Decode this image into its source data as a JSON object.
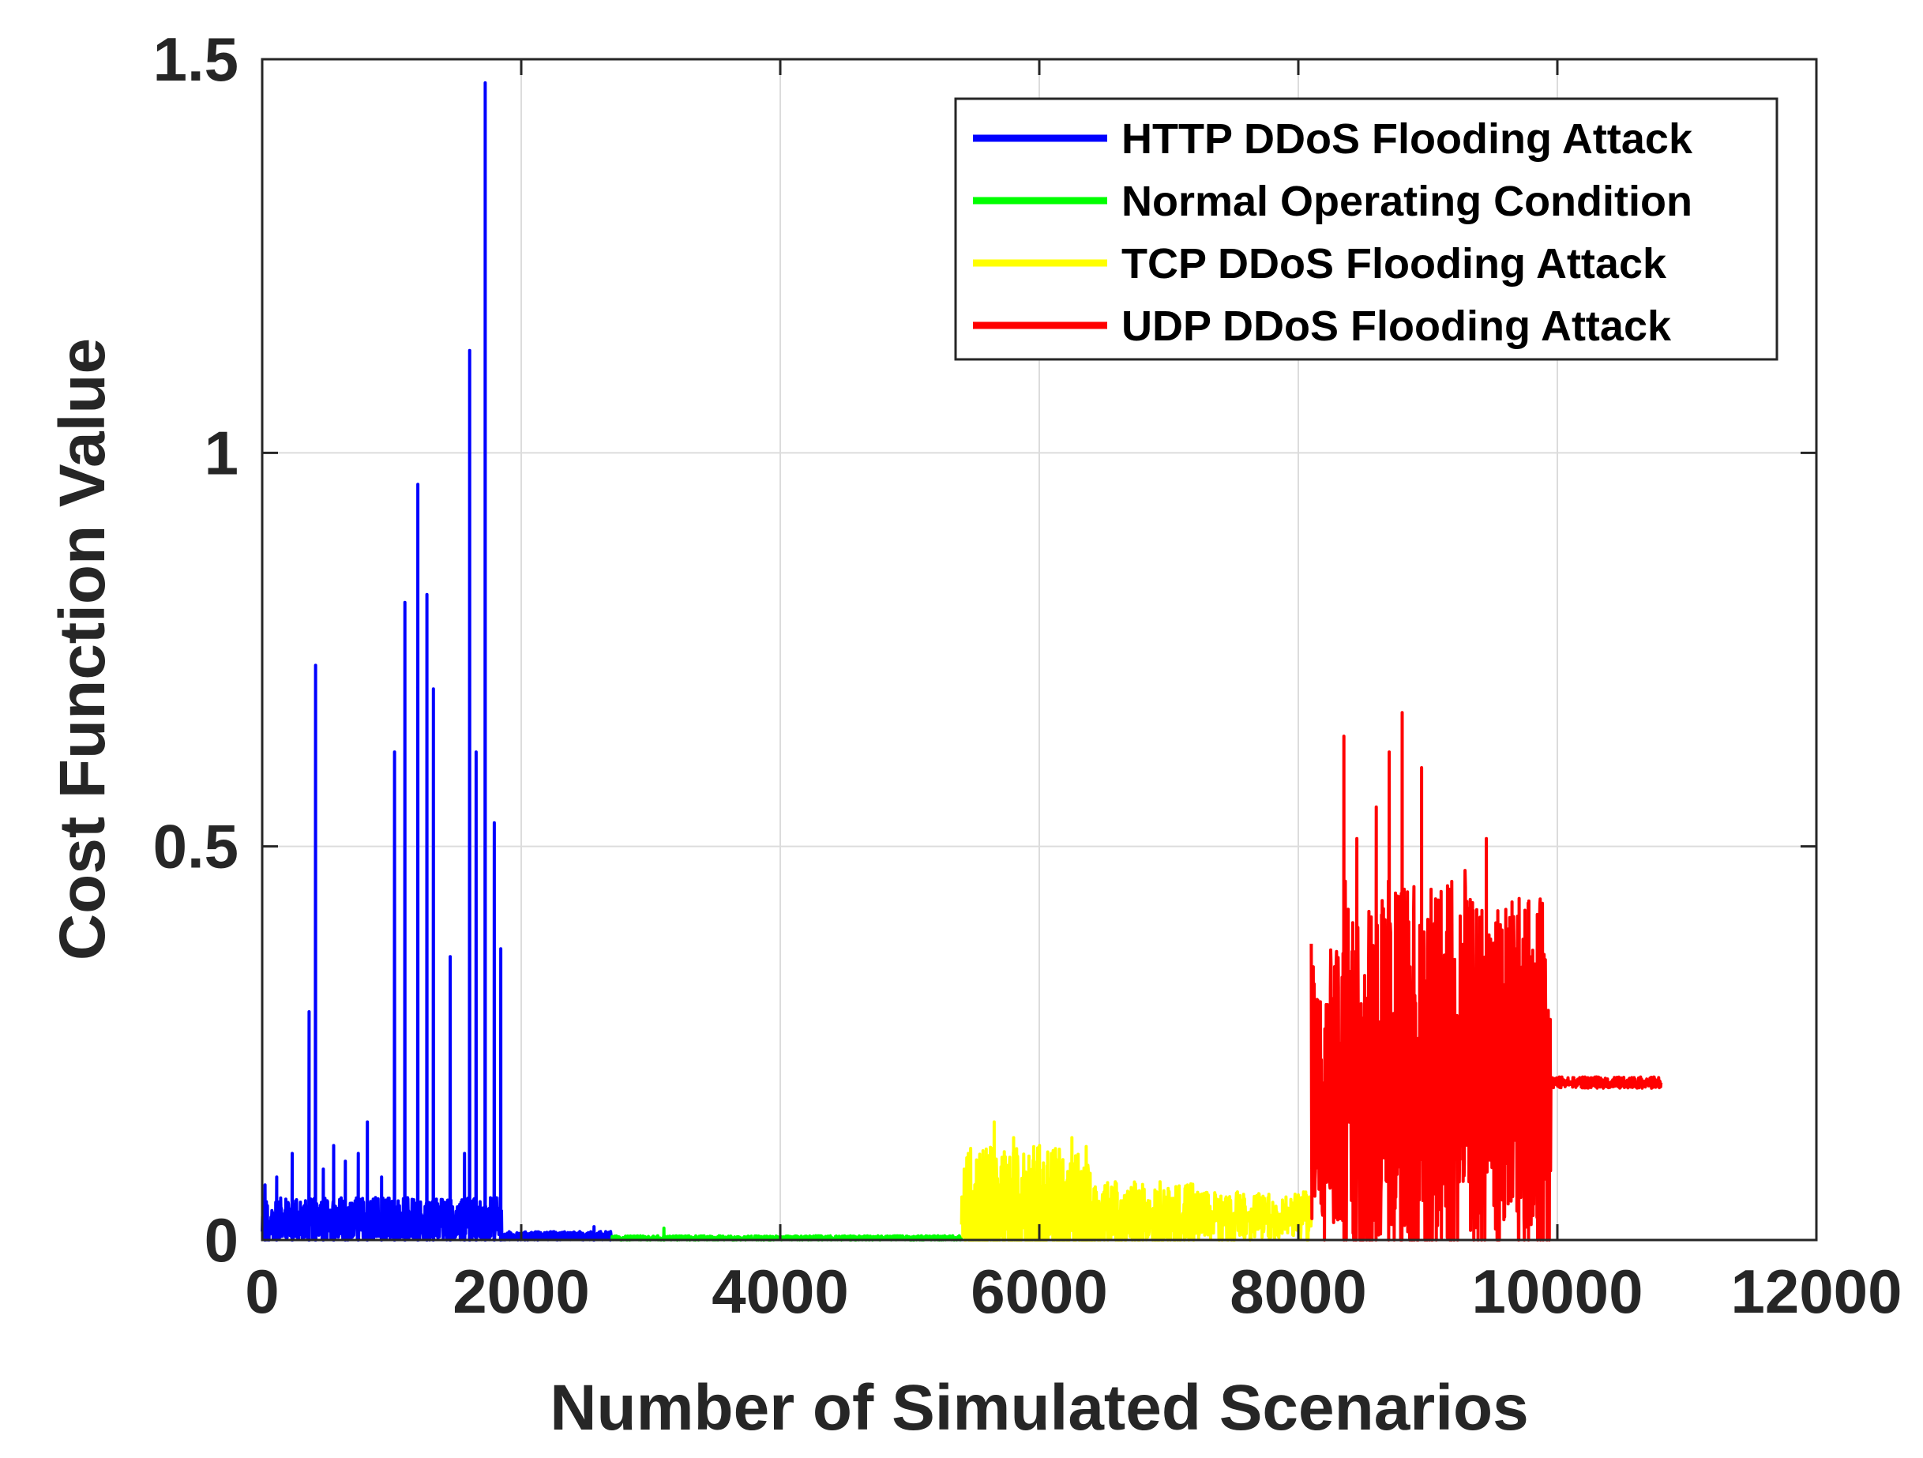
{
  "chart_data": {
    "type": "line",
    "title": "",
    "xlabel": "Number of Simulated Scenarios",
    "ylabel": "Cost Function Value",
    "xlim": [
      0,
      12000
    ],
    "ylim": [
      0,
      1.5
    ],
    "xticks": [
      0,
      2000,
      4000,
      6000,
      8000,
      10000,
      12000
    ],
    "yticks": [
      0,
      0.5,
      1,
      1.5
    ],
    "xtick_labels": [
      "0",
      "2000",
      "4000",
      "6000",
      "8000",
      "10000",
      "12000"
    ],
    "ytick_labels": [
      "0",
      "0.5",
      "1",
      "1.5"
    ],
    "grid": true,
    "legend_position": "top-right",
    "series": [
      {
        "name": "HTTP DDoS Flooding Attack",
        "color": "#0000ff",
        "x_range": [
          0,
          2700
        ],
        "baseline": 0.0,
        "noise": [
          {
            "from": 0,
            "to": 1850,
            "amp": 0.06
          },
          {
            "from": 1850,
            "to": 2700,
            "amp": 0.012
          }
        ],
        "peaks": [
          {
            "x": 20,
            "y": 0.07
          },
          {
            "x": 110,
            "y": 0.08
          },
          {
            "x": 230,
            "y": 0.11
          },
          {
            "x": 360,
            "y": 0.29
          },
          {
            "x": 410,
            "y": 0.73
          },
          {
            "x": 470,
            "y": 0.09
          },
          {
            "x": 550,
            "y": 0.12
          },
          {
            "x": 640,
            "y": 0.1
          },
          {
            "x": 740,
            "y": 0.11
          },
          {
            "x": 810,
            "y": 0.15
          },
          {
            "x": 920,
            "y": 0.08
          },
          {
            "x": 1020,
            "y": 0.62
          },
          {
            "x": 1100,
            "y": 0.81
          },
          {
            "x": 1200,
            "y": 0.96
          },
          {
            "x": 1270,
            "y": 0.82
          },
          {
            "x": 1320,
            "y": 0.7
          },
          {
            "x": 1450,
            "y": 0.36
          },
          {
            "x": 1560,
            "y": 0.11
          },
          {
            "x": 1600,
            "y": 1.13
          },
          {
            "x": 1650,
            "y": 0.62
          },
          {
            "x": 1720,
            "y": 1.47
          },
          {
            "x": 1790,
            "y": 0.53
          },
          {
            "x": 1840,
            "y": 0.37
          },
          {
            "x": 2560,
            "y": 0.017
          }
        ]
      },
      {
        "name": "Normal Operating Condition",
        "color": "#00ff00",
        "x_range": [
          2700,
          5400
        ],
        "baseline": 0.0,
        "noise": [
          {
            "from": 2700,
            "to": 5400,
            "amp": 0.006
          }
        ],
        "peaks": [
          {
            "x": 3100,
            "y": 0.015
          }
        ]
      },
      {
        "name": "TCP DDoS Flooding Attack",
        "color": "#ffff00",
        "x_range": [
          5400,
          8100
        ],
        "baseline": 0.03,
        "noise": [
          {
            "from": 5400,
            "to": 6400,
            "amp": 0.1
          },
          {
            "from": 6400,
            "to": 7200,
            "amp": 0.05
          },
          {
            "from": 7200,
            "to": 8100,
            "amp": 0.035
          }
        ],
        "peaks": [
          {
            "x": 5450,
            "y": 0.11
          },
          {
            "x": 5650,
            "y": 0.15
          },
          {
            "x": 5800,
            "y": 0.13
          },
          {
            "x": 6000,
            "y": 0.12
          },
          {
            "x": 6250,
            "y": 0.13
          },
          {
            "x": 6600,
            "y": 0.06
          }
        ]
      },
      {
        "name": "UDP DDoS Flooding Attack",
        "color": "#ff0000",
        "x_range": [
          8100,
          10800
        ],
        "baseline": 0.2,
        "noise": [
          {
            "from": 8100,
            "to": 8350,
            "amp": 0.2
          },
          {
            "from": 8350,
            "to": 9300,
            "amp": 0.3
          },
          {
            "from": 9300,
            "to": 9950,
            "amp": 0.26
          },
          {
            "from": 9950,
            "to": 10800,
            "amp": 0.008
          }
        ],
        "peaks": [
          {
            "x": 8200,
            "y": 0.0
          },
          {
            "x": 8350,
            "y": 0.64
          },
          {
            "x": 8450,
            "y": 0.51
          },
          {
            "x": 8600,
            "y": 0.55
          },
          {
            "x": 8700,
            "y": 0.62
          },
          {
            "x": 8800,
            "y": 0.67
          },
          {
            "x": 8950,
            "y": 0.6
          },
          {
            "x": 9150,
            "y": 0.45
          },
          {
            "x": 9300,
            "y": 0.43
          },
          {
            "x": 9450,
            "y": 0.51
          },
          {
            "x": 9600,
            "y": 0.42
          },
          {
            "x": 9800,
            "y": 0.36
          }
        ]
      }
    ]
  }
}
